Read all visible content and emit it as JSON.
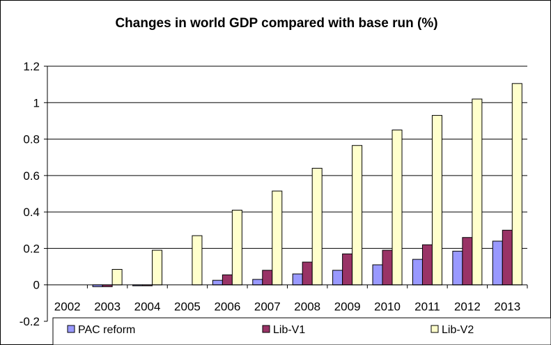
{
  "chart_data": {
    "type": "bar",
    "title": "Changes in world GDP compared with base run (%)",
    "xlabel": "",
    "ylabel": "",
    "categories": [
      "2002",
      "2003",
      "2004",
      "2005",
      "2006",
      "2007",
      "2008",
      "2009",
      "2010",
      "2011",
      "2012",
      "2013"
    ],
    "ylim": [
      -0.2,
      1.2
    ],
    "yticks": [
      -0.2,
      0,
      0.2,
      0.4,
      0.6,
      0.8,
      1,
      1.2
    ],
    "ytick_labels": [
      "-0.2",
      "0",
      "0.2",
      "0.4",
      "0.6",
      "0.8",
      "1",
      "1.2"
    ],
    "grid": true,
    "legend_position": "bottom",
    "series": [
      {
        "name": "PAC reform",
        "color": "#9999ff",
        "values": [
          0,
          -0.01,
          -0.005,
          0,
          0.025,
          0.03,
          0.06,
          0.08,
          0.11,
          0.14,
          0.185,
          0.24
        ]
      },
      {
        "name": "Lib-V1",
        "color": "#993366",
        "values": [
          0,
          -0.01,
          -0.005,
          0,
          0.055,
          0.08,
          0.125,
          0.17,
          0.19,
          0.22,
          0.26,
          0.3
        ]
      },
      {
        "name": "Lib-V2",
        "color": "#ffffcc",
        "values": [
          0,
          0.085,
          0.19,
          0.27,
          0.41,
          0.515,
          0.64,
          0.765,
          0.85,
          0.93,
          1.02,
          1.105
        ]
      }
    ]
  }
}
